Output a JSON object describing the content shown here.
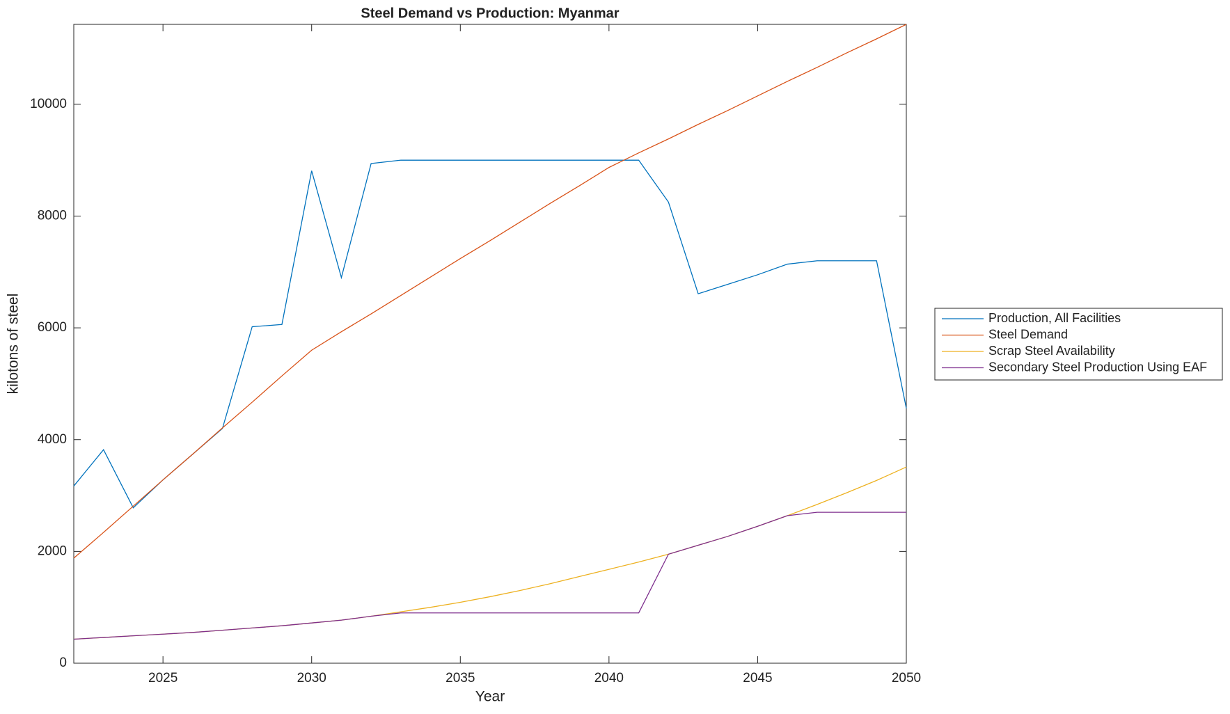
{
  "chart_data": {
    "type": "line",
    "title": "Steel Demand vs Production: Myanmar",
    "xlabel": "Year",
    "ylabel": "kilotons of steel",
    "x": [
      2022,
      2023,
      2024,
      2025,
      2026,
      2027,
      2028,
      2029,
      2030,
      2031,
      2032,
      2033,
      2034,
      2035,
      2036,
      2037,
      2038,
      2039,
      2040,
      2041,
      2042,
      2043,
      2044,
      2045,
      2046,
      2047,
      2048,
      2049,
      2050
    ],
    "series": [
      {
        "name": "Production, All Facilities",
        "color": "#0072bd",
        "values": [
          3170,
          3820,
          2780,
          3280,
          3740,
          4200,
          6020,
          6060,
          8810,
          6900,
          8940,
          9000,
          9000,
          9000,
          9000,
          9000,
          9000,
          9000,
          9000,
          9000,
          8250,
          6610,
          6780,
          6950,
          7140,
          7200,
          7200,
          7200,
          4560
        ]
      },
      {
        "name": "Steel Demand",
        "color": "#d95319",
        "values": [
          1880,
          2340,
          2810,
          3280,
          3740,
          4210,
          4670,
          5140,
          5600,
          5930,
          6250,
          6580,
          6910,
          7240,
          7560,
          7890,
          8220,
          8540,
          8870,
          9130,
          9380,
          9640,
          9890,
          10150,
          10410,
          10660,
          10920,
          11170,
          11430
        ]
      },
      {
        "name": "Scrap Steel Availability",
        "color": "#edb120",
        "values": [
          430,
          460,
          490,
          520,
          550,
          590,
          630,
          670,
          720,
          770,
          840,
          920,
          1000,
          1090,
          1190,
          1300,
          1420,
          1550,
          1680,
          1810,
          1950,
          2110,
          2270,
          2450,
          2640,
          2840,
          3050,
          3270,
          3510
        ]
      },
      {
        "name": "Secondary Steel Production Using EAF",
        "color": "#7e2f8e",
        "values": [
          430,
          460,
          490,
          520,
          550,
          590,
          630,
          670,
          720,
          770,
          840,
          900,
          900,
          900,
          900,
          900,
          900,
          900,
          900,
          900,
          1950,
          2110,
          2270,
          2450,
          2640,
          2700,
          2700,
          2700,
          2700
        ]
      }
    ],
    "xlim": [
      2022,
      2050
    ],
    "xticks": [
      2025,
      2030,
      2035,
      2040,
      2045,
      2050
    ],
    "ylim": [
      0,
      11430
    ],
    "yticks": [
      0,
      2000,
      4000,
      6000,
      8000,
      10000
    ],
    "grid": false,
    "legend": "right"
  }
}
